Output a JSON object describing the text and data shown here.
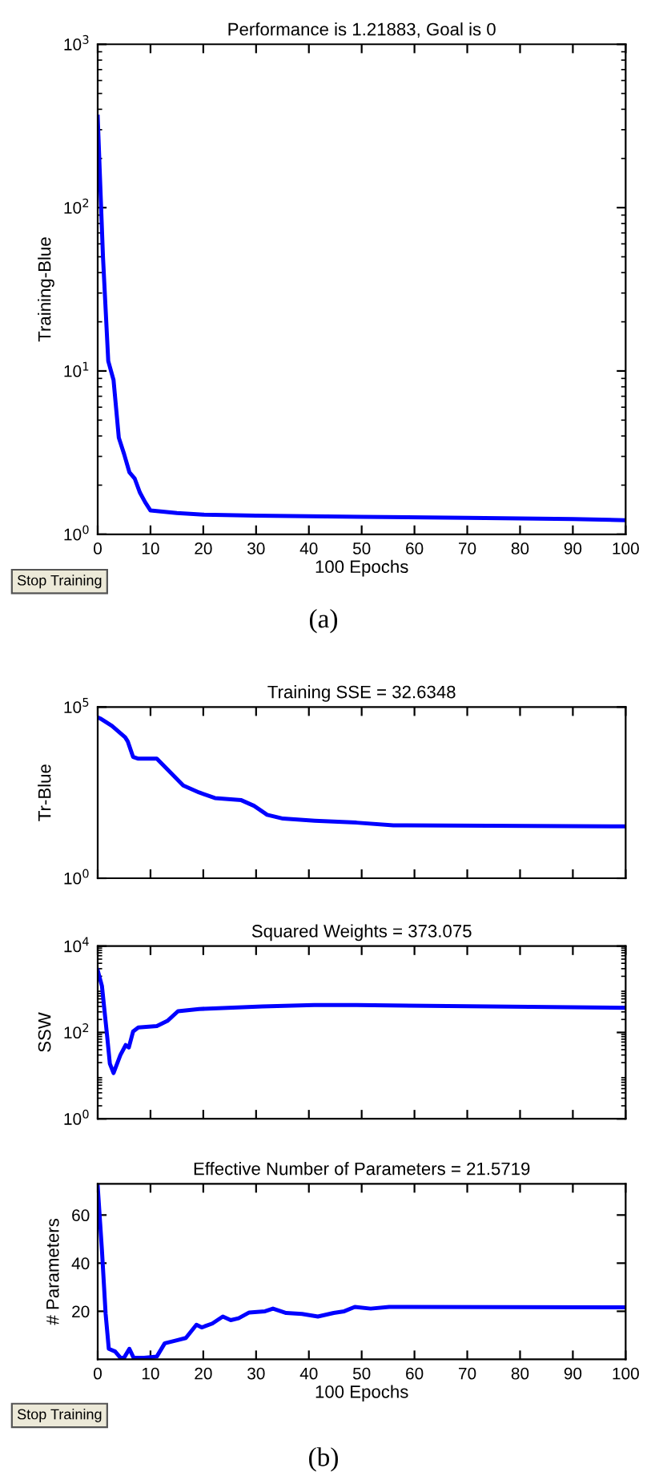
{
  "chart_data": [
    {
      "type": "line",
      "title": "Performance is 1.21883, Goal is 0",
      "xlabel": "100 Epochs",
      "ylabel": "Training-Blue",
      "log": "y",
      "grid": false,
      "legend": false,
      "xlim": [
        0,
        100
      ],
      "xticks": [
        0,
        10,
        20,
        30,
        40,
        50,
        60,
        70,
        80,
        90,
        100
      ],
      "ylim": [
        1,
        1000
      ],
      "yticks": [
        {
          "value": 1,
          "label": "10$^{0}$"
        },
        {
          "value": 10,
          "label": "10$^{1}$"
        },
        {
          "value": 100,
          "label": "10$^{2}$"
        },
        {
          "value": 1000,
          "label": "10$^{3}$"
        }
      ],
      "annotations": [
        "Stop Training",
        "(a)"
      ],
      "series": [
        {
          "color": "#0000ff",
          "x": [
            0,
            1,
            2,
            3,
            4,
            5,
            6,
            7,
            8,
            9,
            10,
            15,
            20,
            30,
            50,
            70,
            90,
            100
          ],
          "values": [
            360,
            50,
            11.5,
            8.8,
            3.9,
            3.1,
            2.4,
            2.2,
            1.8,
            1.57,
            1.4,
            1.35,
            1.32,
            1.3,
            1.28,
            1.26,
            1.24,
            1.22
          ]
        }
      ]
    },
    {
      "type": "line",
      "title": "Training SSE = 32.6348",
      "ylabel": "Tr-Blue",
      "log": "y",
      "grid": false,
      "legend": false,
      "tick_labels": "y",
      "xlim": [
        0,
        100
      ],
      "xticks": [
        0,
        10,
        20,
        30,
        40,
        50,
        60,
        70,
        80,
        90,
        100
      ],
      "ylim": [
        1,
        100000
      ],
      "yticks": [
        {
          "value": 1,
          "label": "10$^{0}$"
        },
        {
          "value": 100000,
          "label": "10$^{5}$"
        }
      ],
      "series": [
        {
          "color": "#0000ff",
          "x": [
            0,
            0.5,
            2.7,
            5.2,
            5.7,
            6.7,
            7.7,
            11.2,
            13.7,
            16.2,
            19.2,
            22.2,
            27.2,
            29.6,
            32.1,
            35.1,
            41.1,
            49,
            56,
            100
          ],
          "values": [
            50000,
            46000,
            28000,
            13000,
            9800,
            3500,
            3100,
            3100,
            1260,
            510,
            320,
            220,
            190,
            130,
            71,
            55,
            48,
            42,
            35,
            32.6
          ]
        }
      ]
    },
    {
      "type": "line",
      "title": "Squared Weights = 373.075",
      "ylabel": "SSW",
      "log": "y",
      "grid": false,
      "legend": false,
      "tick_labels": "y",
      "xlim": [
        0,
        100
      ],
      "xticks": [
        0,
        10,
        20,
        30,
        40,
        50,
        60,
        70,
        80,
        90,
        100
      ],
      "ylim": [
        1,
        10000
      ],
      "yticks": [
        {
          "value": 1,
          "label": "10$^{0}$"
        },
        {
          "value": 100,
          "label": "10$^{2}$"
        },
        {
          "value": 10000,
          "label": "10$^{4}$"
        }
      ],
      "series": [
        {
          "color": "#0000ff",
          "x": [
            0,
            0.8,
            1.8,
            2.3,
            3,
            4.3,
            5.3,
            5.9,
            6.7,
            7.7,
            11.2,
            13.2,
            15.2,
            19.2,
            31.2,
            41,
            49,
            100
          ],
          "values": [
            2750,
            1200,
            80,
            19,
            11.5,
            30,
            51,
            45,
            105,
            130,
            140,
            185,
            310,
            350,
            400,
            430,
            430,
            373
          ]
        }
      ]
    },
    {
      "type": "line",
      "title": "Effective Number of Parameters = 21.5719",
      "xlabel": "100 Epochs",
      "ylabel": "# Parameters",
      "grid": false,
      "legend": false,
      "xlim": [
        0,
        100
      ],
      "xticks": [
        0,
        10,
        20,
        30,
        40,
        50,
        60,
        70,
        80,
        90,
        100
      ],
      "ylim": [
        0,
        73
      ],
      "yticks": [
        20,
        40,
        60
      ],
      "annotations": [
        "Stop Training",
        "(b)"
      ],
      "series": [
        {
          "color": "#0000ff",
          "x": [
            0,
            0.8,
            1.5,
            2.1,
            3.3,
            4.3,
            5,
            6,
            6.8,
            8.8,
            11.2,
            12.7,
            14.7,
            16.7,
            18.7,
            19.7,
            21.7,
            23.7,
            25.2,
            26.7,
            28.7,
            31.7,
            33.2,
            35.7,
            38.7,
            41.7,
            44.7,
            46.7,
            48.7,
            51.7,
            55.2,
            100
          ],
          "values": [
            72,
            45.5,
            19,
            4.4,
            3.3,
            0.7,
            0.7,
            4.4,
            0.7,
            0.7,
            1.2,
            6.7,
            7.8,
            8.9,
            14.4,
            13.3,
            14.9,
            17.8,
            16.3,
            17.1,
            19.5,
            20,
            21.1,
            19.3,
            18.9,
            17.8,
            19.3,
            20,
            21.8,
            21.1,
            21.8,
            21.6
          ]
        }
      ]
    }
  ]
}
